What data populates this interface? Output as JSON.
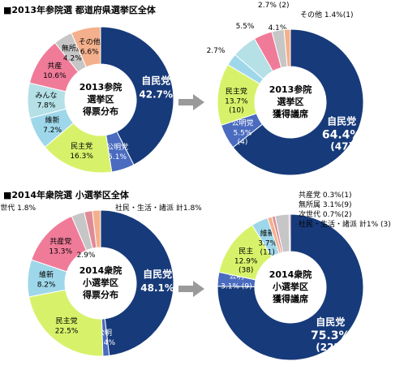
{
  "titles": {
    "top": "■2013年参院選 都道府県選挙区全体",
    "bottom": "■2014年衆院選 小選挙区全体"
  },
  "colors": {
    "jimin": "#173a7a",
    "komei": "#4a6bbf",
    "minshu": "#d7f26a",
    "ishin": "#9fd7ea",
    "minna": "#b4e0e6",
    "kyosan": "#f07b99",
    "mushozoku": "#c6c6c6",
    "jisedai": "#e08a95",
    "shamin": "#4a8bc4",
    "sonota": "#f4b08c"
  },
  "chart_data": [
    {
      "id": "tl",
      "type": "pie",
      "center_label": [
        "2013参院",
        "選挙区",
        "得票分布"
      ],
      "slices": [
        {
          "key": "jimin",
          "name": "自民党",
          "value": 42.7,
          "label": "42.7%"
        },
        {
          "key": "komei",
          "name": "公明党",
          "value": 5.1,
          "label": "5.1%"
        },
        {
          "key": "minshu",
          "name": "民主党",
          "value": 16.3,
          "label": "16.3%"
        },
        {
          "key": "ishin",
          "name": "維新",
          "value": 7.2,
          "label": "7.2%"
        },
        {
          "key": "minna",
          "name": "みんな",
          "value": 7.8,
          "label": "7.8%"
        },
        {
          "key": "kyosan",
          "name": "共産",
          "value": 10.6,
          "label": "10.6%"
        },
        {
          "key": "mushozoku",
          "name": "無所属",
          "value": 4.2,
          "label": "4.2%"
        },
        {
          "key": "sonota",
          "name": "その他",
          "value": 6.6,
          "label": "6.6%"
        }
      ]
    },
    {
      "id": "tr",
      "type": "pie",
      "center_label": [
        "2013参院",
        "選挙区",
        "獲得議席"
      ],
      "slices": [
        {
          "key": "jimin",
          "name": "自民党",
          "value": 64.4,
          "label": "64.4%",
          "seats": "(47)"
        },
        {
          "key": "komei",
          "name": "公明党",
          "value": 5.5,
          "label": "5.5%",
          "seats": "(4)"
        },
        {
          "key": "minshu",
          "name": "民主党",
          "value": 13.7,
          "label": "13.7%",
          "seats": "(10)"
        },
        {
          "key": "ishin",
          "name": "維新",
          "value": 2.7,
          "label": "2.7%",
          "seats": "(2)"
        },
        {
          "key": "minna",
          "name": "みんな",
          "value": 5.5,
          "label": "5.5%",
          "seats": "(4)"
        },
        {
          "key": "kyosan",
          "name": "共産",
          "value": 4.1,
          "label": "4.1%",
          "seats": "(3)"
        },
        {
          "key": "mushozoku",
          "name": "無所属",
          "value": 2.7,
          "label": "2.7% (2)"
        },
        {
          "key": "sonota",
          "name": "その他",
          "value": 1.4,
          "label": "その他 1.4%(1)"
        }
      ]
    },
    {
      "id": "bl",
      "type": "pie",
      "center_label": [
        "2014衆院",
        "小選挙区",
        "得票分布"
      ],
      "slices": [
        {
          "key": "jimin",
          "name": "自民党",
          "value": 48.1,
          "label": "48.1%"
        },
        {
          "key": "komei",
          "name": "公明",
          "value": 1.4,
          "label": "/1.4%"
        },
        {
          "key": "minshu",
          "name": "民主党",
          "value": 22.5,
          "label": "22.5%"
        },
        {
          "key": "ishin",
          "name": "維新",
          "value": 8.2,
          "label": "8.2%"
        },
        {
          "key": "kyosan",
          "name": "共産党",
          "value": 13.3,
          "label": "13.3%"
        },
        {
          "key": "mushozoku",
          "name": "無所属",
          "value": 2.9,
          "label": "2.9%"
        },
        {
          "key": "jisedai",
          "name": "次世代",
          "value": 1.8,
          "label": "次世代 1.8%"
        },
        {
          "key": "sonota",
          "name": "社民・生活・諸派",
          "value": 1.8,
          "label": "社民・生活・諸派 計1.8%"
        }
      ]
    },
    {
      "id": "br",
      "type": "pie",
      "center_label": [
        "2014衆院",
        "小選挙区",
        "獲得議席"
      ],
      "slices": [
        {
          "key": "jimin",
          "name": "自民党",
          "value": 75.3,
          "label": "75.3%",
          "seats": "(222)"
        },
        {
          "key": "komei",
          "name": "公明",
          "value": 3.1,
          "label": "3.1% (9)"
        },
        {
          "key": "minshu",
          "name": "民主",
          "value": 12.9,
          "label": "12.9%",
          "seats": "(38)"
        },
        {
          "key": "ishin",
          "name": "維新",
          "value": 3.7,
          "label": "3.7%",
          "seats": "(11)"
        },
        {
          "key": "sonota",
          "name": "社民・生活・諸派",
          "value": 1.0,
          "label": "社民・生活・諸派 計1% (3)"
        },
        {
          "key": "jisedai",
          "name": "次世代",
          "value": 0.7,
          "label": "次世代 0.7%(2)"
        },
        {
          "key": "mushozoku",
          "name": "無所属",
          "value": 3.1,
          "label": "無所属 3.1%(9)"
        },
        {
          "key": "kyosan",
          "name": "共産党",
          "value": 0.3,
          "label": "共産党 0.3%(1)"
        }
      ]
    }
  ]
}
